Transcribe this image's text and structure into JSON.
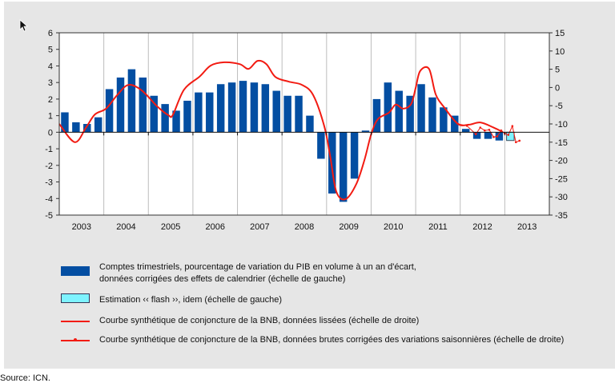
{
  "chart_data": {
    "type": "bar",
    "title": "",
    "xlabel": "",
    "ylabel": "",
    "left_axis": {
      "ylim": [
        -5,
        6
      ],
      "ticks": [
        "6",
        "5",
        "4",
        "3",
        "2",
        "1",
        "0",
        "-1",
        "-2",
        "-3",
        "-4",
        "-5"
      ]
    },
    "right_axis": {
      "ylim": [
        -35,
        15
      ],
      "ticks": [
        "15",
        "10",
        "5",
        "0",
        "-5",
        "-10",
        "-15",
        "-20",
        "-25",
        "-30",
        "-35"
      ]
    },
    "categories": [
      "2003",
      "2004",
      "2005",
      "2006",
      "2007",
      "2008",
      "2009",
      "2010",
      "2011",
      "2012",
      "2013"
    ],
    "grid": "vertical year separators",
    "series": [
      {
        "name": "Comptes trimestriels, pourcentage de variation du PIB en volume à un an d'écart, données corrigées des effets de calendrier (échelle de gauche)",
        "type": "bar",
        "axis": "left",
        "color": "#034ea2",
        "start_quarter": "2003Q1",
        "values": [
          1.2,
          0.6,
          0.5,
          0.9,
          2.6,
          3.3,
          3.8,
          3.3,
          2.2,
          1.7,
          1.3,
          1.9,
          2.4,
          2.4,
          2.9,
          3.0,
          3.1,
          3.0,
          2.9,
          2.5,
          2.2,
          2.2,
          1.0,
          -1.6,
          -3.7,
          -4.2,
          -2.8,
          0.1,
          2.0,
          3.0,
          2.5,
          2.2,
          2.9,
          2.1,
          1.5,
          1.0,
          0.2,
          -0.4,
          -0.4,
          -0.5
        ]
      },
      {
        "name": "Estimation « flash », idem (échelle de gauche)",
        "type": "bar",
        "axis": "left",
        "color": "#7ef3ff",
        "start_quarter": "2013Q1",
        "values": [
          -0.5
        ]
      },
      {
        "name": "Courbe synthétique de conjoncture de la BNB, données lissées (échelle de droite)",
        "type": "line",
        "axis": "right",
        "color": "#f21b12",
        "x_years": [
          2003.0,
          2003.35,
          2003.6,
          2003.8,
          2004.05,
          2004.3,
          2004.55,
          2004.85,
          2005.2,
          2005.45,
          2005.55,
          2005.8,
          2006.15,
          2006.4,
          2006.7,
          2007.05,
          2007.25,
          2007.45,
          2007.65,
          2007.85,
          2008.15,
          2008.45,
          2008.7,
          2008.95,
          2009.08,
          2009.22,
          2009.43,
          2009.67,
          2009.85,
          2010.0,
          2010.15,
          2010.4,
          2010.55,
          2010.72,
          2010.9,
          2011.0,
          2011.1,
          2011.3,
          2011.45,
          2011.65,
          2011.95,
          2012.2,
          2012.45,
          2012.75,
          2012.95
        ],
        "values": [
          -10,
          -15,
          -11,
          -7.4,
          -5.8,
          -2.1,
          0.7,
          -0.8,
          -5.2,
          -7.6,
          -7.5,
          -0.6,
          3,
          6,
          6.9,
          6.4,
          5.1,
          7.3,
          6.4,
          2.9,
          1.6,
          0.7,
          -2.1,
          -10.7,
          -18.8,
          -28.6,
          -30.6,
          -26.4,
          -19.9,
          -12.9,
          -8.7,
          -6.9,
          -4.7,
          -5.8,
          -4.5,
          -0.1,
          4.5,
          5.1,
          -1.9,
          -5.6,
          -10,
          -10.2,
          -9.6,
          -11,
          -12.2
        ]
      },
      {
        "name": "Courbe synthétique de conjoncture de la BNB, données brutes corrigées des variations saisonnières (échelle de droite)",
        "type": "line",
        "axis": "right",
        "color": "#f21b12",
        "x_years": [
          2011.95,
          2012.15,
          2012.35,
          2012.45,
          2012.55,
          2012.65,
          2012.75,
          2012.83,
          2012.92,
          2013.0,
          2013.08,
          2013.17,
          2013.25,
          2013.33
        ],
        "values": [
          -10,
          -10.5,
          -12.8,
          -11,
          -11.8,
          -11.6,
          -13.6,
          -13.4,
          -11.8,
          -12.6,
          -13,
          -10.6,
          -15,
          -14.6
        ]
      }
    ],
    "legend_placement": "bottom"
  },
  "legend": {
    "items": [
      {
        "line1": "Comptes trimestriels, pourcentage de variation du PIB en volume à un an d'écart,",
        "line2": "données corrigées des effets de calendrier (échelle de gauche)"
      },
      {
        "line1": "Estimation ‹‹ flash ››, idem (échelle de gauche)"
      },
      {
        "line1": "Courbe synthétique de conjoncture de la BNB, données lissées (échelle de droite)"
      },
      {
        "line1": "Courbe synthétique de conjoncture de la BNB, données brutes corrigées des variations saisonnières (échelle de droite)"
      }
    ]
  },
  "source": "Source: ICN.",
  "icons": {
    "cursor": "mouse-pointer-icon"
  }
}
